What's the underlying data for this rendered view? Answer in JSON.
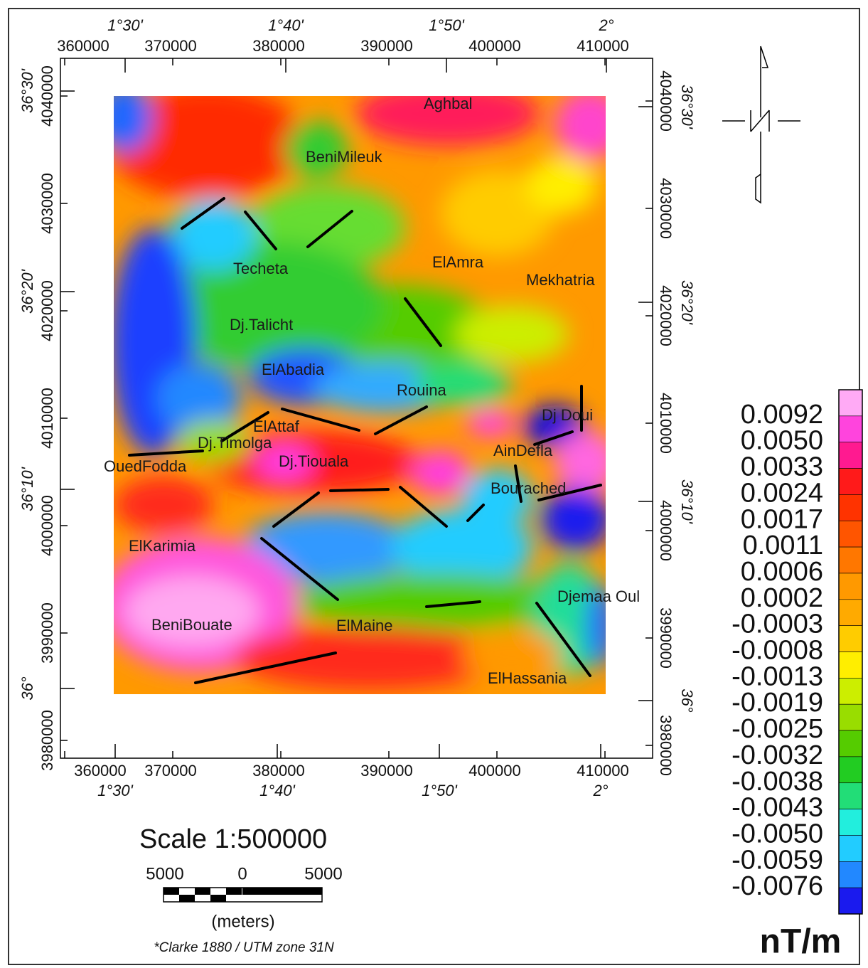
{
  "map": {
    "top_axis": {
      "degrees": [
        "1°30'",
        "1°40'",
        "1°50'",
        "2°"
      ],
      "eastings": [
        "360000",
        "370000",
        "380000",
        "390000",
        "400000",
        "410000"
      ]
    },
    "bottom_axis": {
      "degrees": [
        "1°30'",
        "1°40'",
        "1°50'",
        "2°"
      ],
      "eastings": [
        "360000",
        "370000",
        "380000",
        "390000",
        "400000",
        "410000"
      ]
    },
    "left_axis": {
      "degrees": [
        "36°30'",
        "36°20'",
        "36°10'",
        "36°"
      ],
      "northings": [
        "4040000",
        "4030000",
        "4020000",
        "4010000",
        "4000000",
        "3990000",
        "3980000"
      ]
    },
    "right_axis": {
      "degrees": [
        "36°30'",
        "36°20'",
        "36°10'",
        "36°"
      ],
      "northings": [
        "4040000",
        "4030000",
        "4020000",
        "4010000",
        "4000000",
        "3990000",
        "3980000"
      ]
    },
    "places": [
      "Aghbal",
      "BeniMileuk",
      "Techeta",
      "ElAmra",
      "Mekhatria",
      "Dj.Talicht",
      "ElAbadia",
      "Rouina",
      "Dj Doui",
      "ElAttaf",
      "Dj.Timolga",
      "AinDefla",
      "OuedFodda",
      "Dj.Tiouala",
      "Bourached",
      "ElKarimia",
      "Djemaa Oul",
      "BeniBouate",
      "ElMaine",
      "ElHassania"
    ]
  },
  "scale": {
    "title": "Scale 1:500000",
    "labels": [
      "5000",
      "0",
      "5000"
    ],
    "unit": "(meters)",
    "projection": "*Clarke 1880 / UTM zone 31N"
  },
  "legend": {
    "labels": [
      "0.0092",
      "0.0050",
      "0.0033",
      "0.0024",
      "0.0017",
      "0.0011",
      "0.0006",
      "0.0002",
      "-0.0003",
      "-0.0008",
      "-0.0013",
      "-0.0019",
      "-0.0025",
      "-0.0032",
      "-0.0038",
      "-0.0043",
      "-0.0050",
      "-0.0059",
      "-0.0076"
    ],
    "colors": [
      "#ffaaf5",
      "#ff44dd",
      "#ff1a90",
      "#ff1a1a",
      "#ff3300",
      "#ff5500",
      "#ff7700",
      "#ff9900",
      "#ffaa00",
      "#ffcc00",
      "#ffee00",
      "#ccee00",
      "#99dd00",
      "#55cc00",
      "#22cc22",
      "#22dd77",
      "#22eedd",
      "#22ccff",
      "#2288ff",
      "#1a1aee"
    ],
    "unit": "nT/m"
  }
}
